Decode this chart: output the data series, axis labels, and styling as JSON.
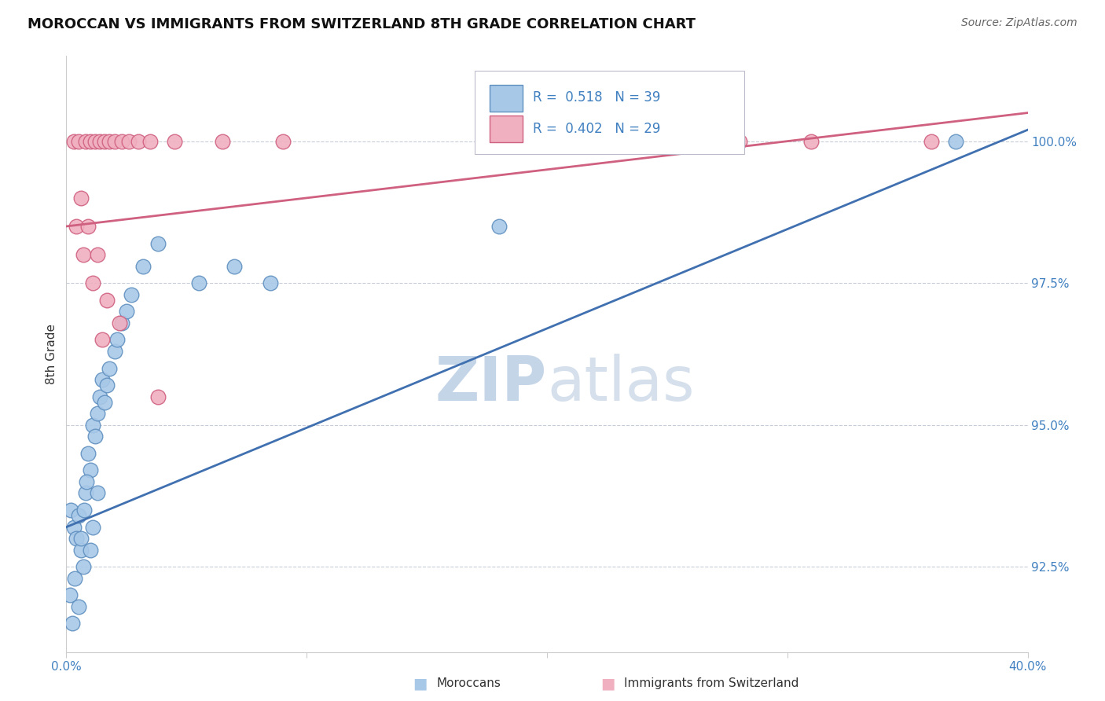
{
  "title": "MOROCCAN VS IMMIGRANTS FROM SWITZERLAND 8TH GRADE CORRELATION CHART",
  "source": "Source: ZipAtlas.com",
  "ylabel_label": "8th Grade",
  "xlim": [
    0.0,
    40.0
  ],
  "ylim": [
    91.0,
    101.5
  ],
  "R_blue": 0.518,
  "N_blue": 39,
  "R_pink": 0.402,
  "N_pink": 29,
  "blue_color": "#a8c8e8",
  "pink_color": "#f0b0c0",
  "blue_edge_color": "#6090c0",
  "pink_edge_color": "#d06080",
  "blue_line_color": "#4070b0",
  "pink_line_color": "#d06080",
  "grid_color": "#c8ccd8",
  "watermark_color": "#dce4f0",
  "y_tick_positions": [
    92.5,
    95.0,
    97.5,
    100.0
  ],
  "y_tick_labels": [
    "92.5%",
    "95.0%",
    "97.5%",
    "100.0%"
  ],
  "x_tick_positions": [
    0.0,
    10.0,
    20.0,
    30.0,
    40.0
  ],
  "x_tick_labels": [
    "0.0%",
    "",
    "",
    "",
    "40.0%"
  ],
  "blue_scatter_x": [
    0.2,
    0.3,
    0.4,
    0.5,
    0.6,
    0.7,
    0.8,
    0.9,
    1.0,
    1.1,
    1.2,
    1.3,
    1.4,
    1.5,
    1.6,
    1.7,
    1.8,
    2.0,
    2.1,
    2.3,
    2.5,
    2.7,
    3.2,
    3.8,
    5.5,
    7.0,
    8.5,
    18.0,
    37.0
  ],
  "blue_scatter_y": [
    93.5,
    93.2,
    93.0,
    93.4,
    92.8,
    92.5,
    93.8,
    94.5,
    94.2,
    95.0,
    94.8,
    95.2,
    95.5,
    95.8,
    95.4,
    95.7,
    96.0,
    96.3,
    96.5,
    96.8,
    97.0,
    97.3,
    97.8,
    98.2,
    97.5,
    97.8,
    97.5,
    98.5,
    100.0
  ],
  "blue_scatter_x2": [
    0.15,
    0.25,
    0.35,
    0.5,
    0.6,
    0.75,
    0.85,
    1.0,
    1.1,
    1.3
  ],
  "blue_scatter_y2": [
    92.0,
    91.5,
    92.3,
    91.8,
    93.0,
    93.5,
    94.0,
    92.8,
    93.2,
    93.8
  ],
  "pink_scatter_x": [
    0.3,
    0.5,
    0.8,
    1.0,
    1.2,
    1.4,
    1.6,
    1.8,
    2.0,
    2.3,
    2.6,
    3.0,
    3.5,
    4.5,
    6.5,
    9.0,
    28.0,
    31.0,
    36.0
  ],
  "pink_scatter_y": [
    100.0,
    100.0,
    100.0,
    100.0,
    100.0,
    100.0,
    100.0,
    100.0,
    100.0,
    100.0,
    100.0,
    100.0,
    100.0,
    100.0,
    100.0,
    100.0,
    100.0,
    100.0,
    100.0
  ],
  "pink_scatter_x2": [
    0.4,
    0.6,
    0.7,
    0.9,
    1.1,
    1.3,
    1.5,
    1.7,
    2.2,
    3.8
  ],
  "pink_scatter_y2": [
    98.5,
    99.0,
    98.0,
    98.5,
    97.5,
    98.0,
    96.5,
    97.2,
    96.8,
    95.5
  ],
  "blue_line_x0": 0.0,
  "blue_line_y0": 93.2,
  "blue_line_x1": 40.0,
  "blue_line_y1": 100.2,
  "pink_line_x0": 0.0,
  "pink_line_y0": 98.5,
  "pink_line_x1": 40.0,
  "pink_line_y1": 100.5
}
